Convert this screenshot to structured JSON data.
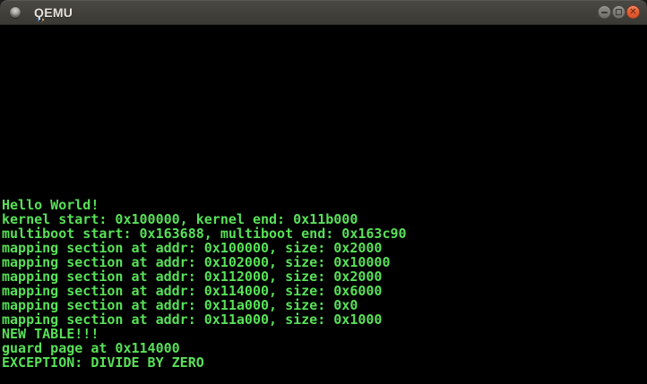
{
  "window": {
    "title": "QEMU",
    "icons": {
      "window_icon": "bullet-circle-icon",
      "minimize": "minus-icon",
      "maximize": "square-outline-icon",
      "close": "cross-icon"
    },
    "controls": {
      "close_glyph": "✕"
    },
    "colors": {
      "titlebar": "#413f3a",
      "close_button": "#e35b32"
    }
  },
  "console": {
    "background": "#000000",
    "text_color": "#58e058",
    "lines": [
      "Hello World!",
      "kernel start: 0x100000, kernel end: 0x11b000",
      "multiboot start: 0x163688, multiboot end: 0x163c90",
      "mapping section at addr: 0x100000, size: 0x2000",
      "mapping section at addr: 0x102000, size: 0x10000",
      "mapping section at addr: 0x112000, size: 0x2000",
      "mapping section at addr: 0x114000, size: 0x6000",
      "mapping section at addr: 0x11a000, size: 0x0",
      "mapping section at addr: 0x11a000, size: 0x1000",
      "NEW TABLE!!!",
      "guard page at 0x114000",
      "EXCEPTION: DIVIDE BY ZERO"
    ]
  }
}
